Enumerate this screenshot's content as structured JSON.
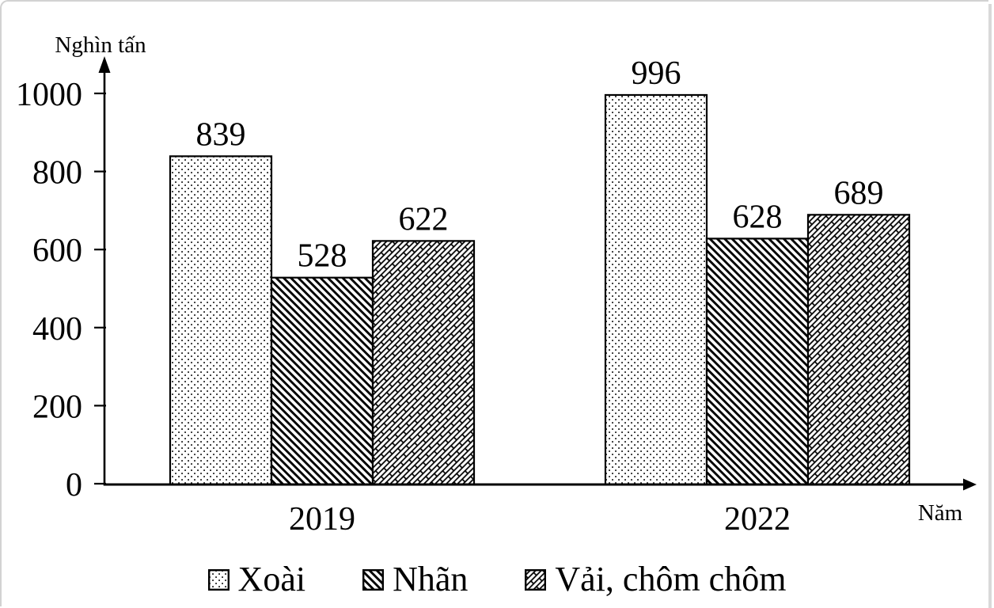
{
  "chart_data": {
    "type": "bar",
    "title": "",
    "ylabel": "Nghìn tấn",
    "xlabel": "Năm",
    "categories": [
      "2019",
      "2022"
    ],
    "series": [
      {
        "name": "Xoài",
        "values": [
          839,
          996
        ],
        "pattern": "dots"
      },
      {
        "name": "Nhãn",
        "values": [
          528,
          628
        ],
        "pattern": "diagonal-stripes"
      },
      {
        "name": "Vải, chôm chôm",
        "values": [
          622,
          689
        ],
        "pattern": "diagonal-brick"
      }
    ],
    "ylim": [
      0,
      1000
    ],
    "yticks": [
      0,
      200,
      400,
      600,
      800,
      1000
    ],
    "grid": false,
    "bar_labels": true,
    "legend_position": "bottom",
    "colors": {
      "stroke": "#000000",
      "bar_fill_base": "#ffffff",
      "background": "#ffffff",
      "frame_border": "#d2d2d2"
    }
  }
}
